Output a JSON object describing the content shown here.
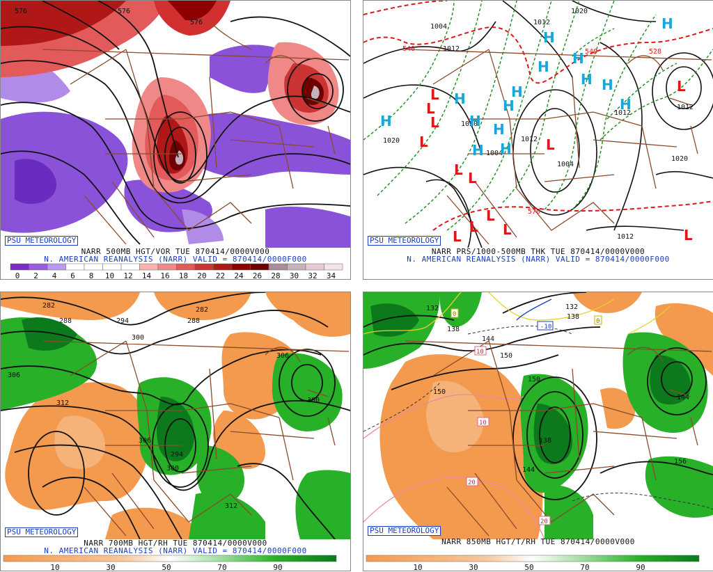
{
  "panels": [
    {
      "id": "vor500",
      "psu_label": "PSU METEOROLOGY",
      "caption_line1": "NARR 500MB HGT/VOR TUE 870414/0000V000",
      "caption_line2": "N. AMERICAN REANALYSIS (NARR) VALID = 870414/0000F000",
      "scale_ticks": [
        "0",
        "2",
        "4",
        "6",
        "8",
        "10",
        "12",
        "14",
        "16",
        "18",
        "20",
        "22",
        "24",
        "26",
        "28",
        "30",
        "32",
        "34"
      ],
      "scale_colors": [
        "#7a2cc9",
        "#9a5ce0",
        "#b89aef",
        "#ffffff",
        "#ffffff",
        "#ffffff",
        "#ffffff",
        "#f9b1b1",
        "#f08888",
        "#e25a5a",
        "#cc3434",
        "#b01818",
        "#8e0000",
        "#6e0000",
        "#a88e9a",
        "#c6b2bc",
        "#e8c8d4",
        "#f4e2ea"
      ],
      "contour_labels": [
        "576",
        "576",
        "576"
      ]
    },
    {
      "id": "prs1000",
      "psu_label": "PSU METEOROLOGY",
      "caption_line1": "NARR PRS/1000-500MB THK TUE 870414/0000V000",
      "caption_line2": "N. AMERICAN REANALYSIS (NARR) VALID = 870414/0000F000",
      "contour_labels": [
        "1004",
        "1012",
        "1020",
        "1012",
        "1020",
        "1004",
        "1012",
        "1020",
        "1012",
        "1012",
        "1004",
        "1020",
        "1012",
        "540",
        "540",
        "570",
        "528"
      ],
      "high_symbol": "H",
      "low_symbol": "L"
    },
    {
      "id": "rh700",
      "psu_label": "PSU METEOROLOGY",
      "caption_line1": "NARR 700MB HGT/RH TUE 870414/0000V000",
      "caption_line2": "N. AMERICAN REANALYSIS (NARR) VALID = 870414/0000F000",
      "scale_ticks": [
        "10",
        "30",
        "50",
        "70",
        "90"
      ],
      "contour_labels": [
        "282",
        "288",
        "294",
        "282",
        "288",
        "300",
        "306",
        "306",
        "312",
        "306",
        "300",
        "294",
        "300",
        "312"
      ]
    },
    {
      "id": "t850",
      "psu_label": "PSU METEOROLOGY",
      "caption_line1": "NARR 850MB HGT/T/RH TUE 870414/0000V000",
      "scale_ticks": [
        "10",
        "30",
        "50",
        "70",
        "90"
      ],
      "contour_labels": [
        "132",
        "138",
        "144",
        "150",
        "150",
        "138",
        "144",
        "156",
        "144",
        "150",
        "132",
        "138",
        "-10",
        "0",
        "0",
        "10",
        "10",
        "20",
        "20"
      ]
    }
  ],
  "colors": {
    "purple": "#8a52d8",
    "light_purple": "#b08ce8",
    "red": "#d23030",
    "pink": "#f19393",
    "dark_red": "#7a0000",
    "green": "#28b028",
    "dark_green": "#0c7a1c",
    "orange": "#f39a4e",
    "light_orange": "#f5b37a",
    "brown_border": "#8b4a2b",
    "blue_label": "#1a3cc4",
    "high_blue": "#1aa6d8",
    "low_red": "#d81a1a",
    "thickness_red": "#e01818",
    "pressure_green": "#1c8a1c"
  }
}
